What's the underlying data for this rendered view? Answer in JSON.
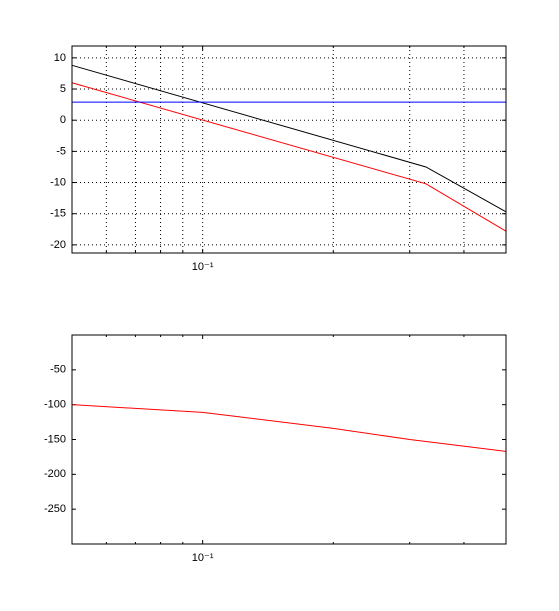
{
  "chart_data": [
    {
      "type": "line",
      "xscale": "log",
      "grid": true,
      "xlim": [
        0.05,
        0.5
      ],
      "xticks": [
        {
          "value": 0.1,
          "label": "10⁻¹"
        }
      ],
      "xminor": [
        0.06,
        0.07,
        0.08,
        0.09,
        0.2,
        0.3,
        0.4
      ],
      "ylim": [
        -21.3,
        11.9
      ],
      "yticks": [
        10,
        5,
        0,
        -5,
        -10,
        -15,
        -20
      ],
      "series": [
        {
          "color": "#000000",
          "x": [
            0.05,
            0.327,
            0.5
          ],
          "values": [
            8.8,
            -7.5,
            -14.7
          ]
        },
        {
          "color": "#ff0000",
          "x": [
            0.05,
            0.327,
            0.5
          ],
          "values": [
            6,
            -10.2,
            -17.8
          ]
        },
        {
          "color": "#0000ff",
          "x": [
            0.05,
            0.5
          ],
          "values": [
            2.9,
            2.9
          ]
        }
      ]
    },
    {
      "type": "line",
      "xscale": "log",
      "grid": false,
      "xlim": [
        0.05,
        0.5
      ],
      "xticks": [
        {
          "value": 0.1,
          "label": "10⁻¹"
        }
      ],
      "xminor": [
        0.06,
        0.07,
        0.08,
        0.09,
        0.2,
        0.3,
        0.4
      ],
      "ylim": [
        -300,
        0
      ],
      "yticks": [
        -50,
        -100,
        -150,
        -200,
        -250
      ],
      "series": [
        {
          "color": "#ff0000",
          "x": [
            0.05,
            0.1,
            0.2,
            0.3,
            0.5
          ],
          "values": [
            -100,
            -111,
            -134,
            -150,
            -167
          ]
        }
      ]
    }
  ]
}
